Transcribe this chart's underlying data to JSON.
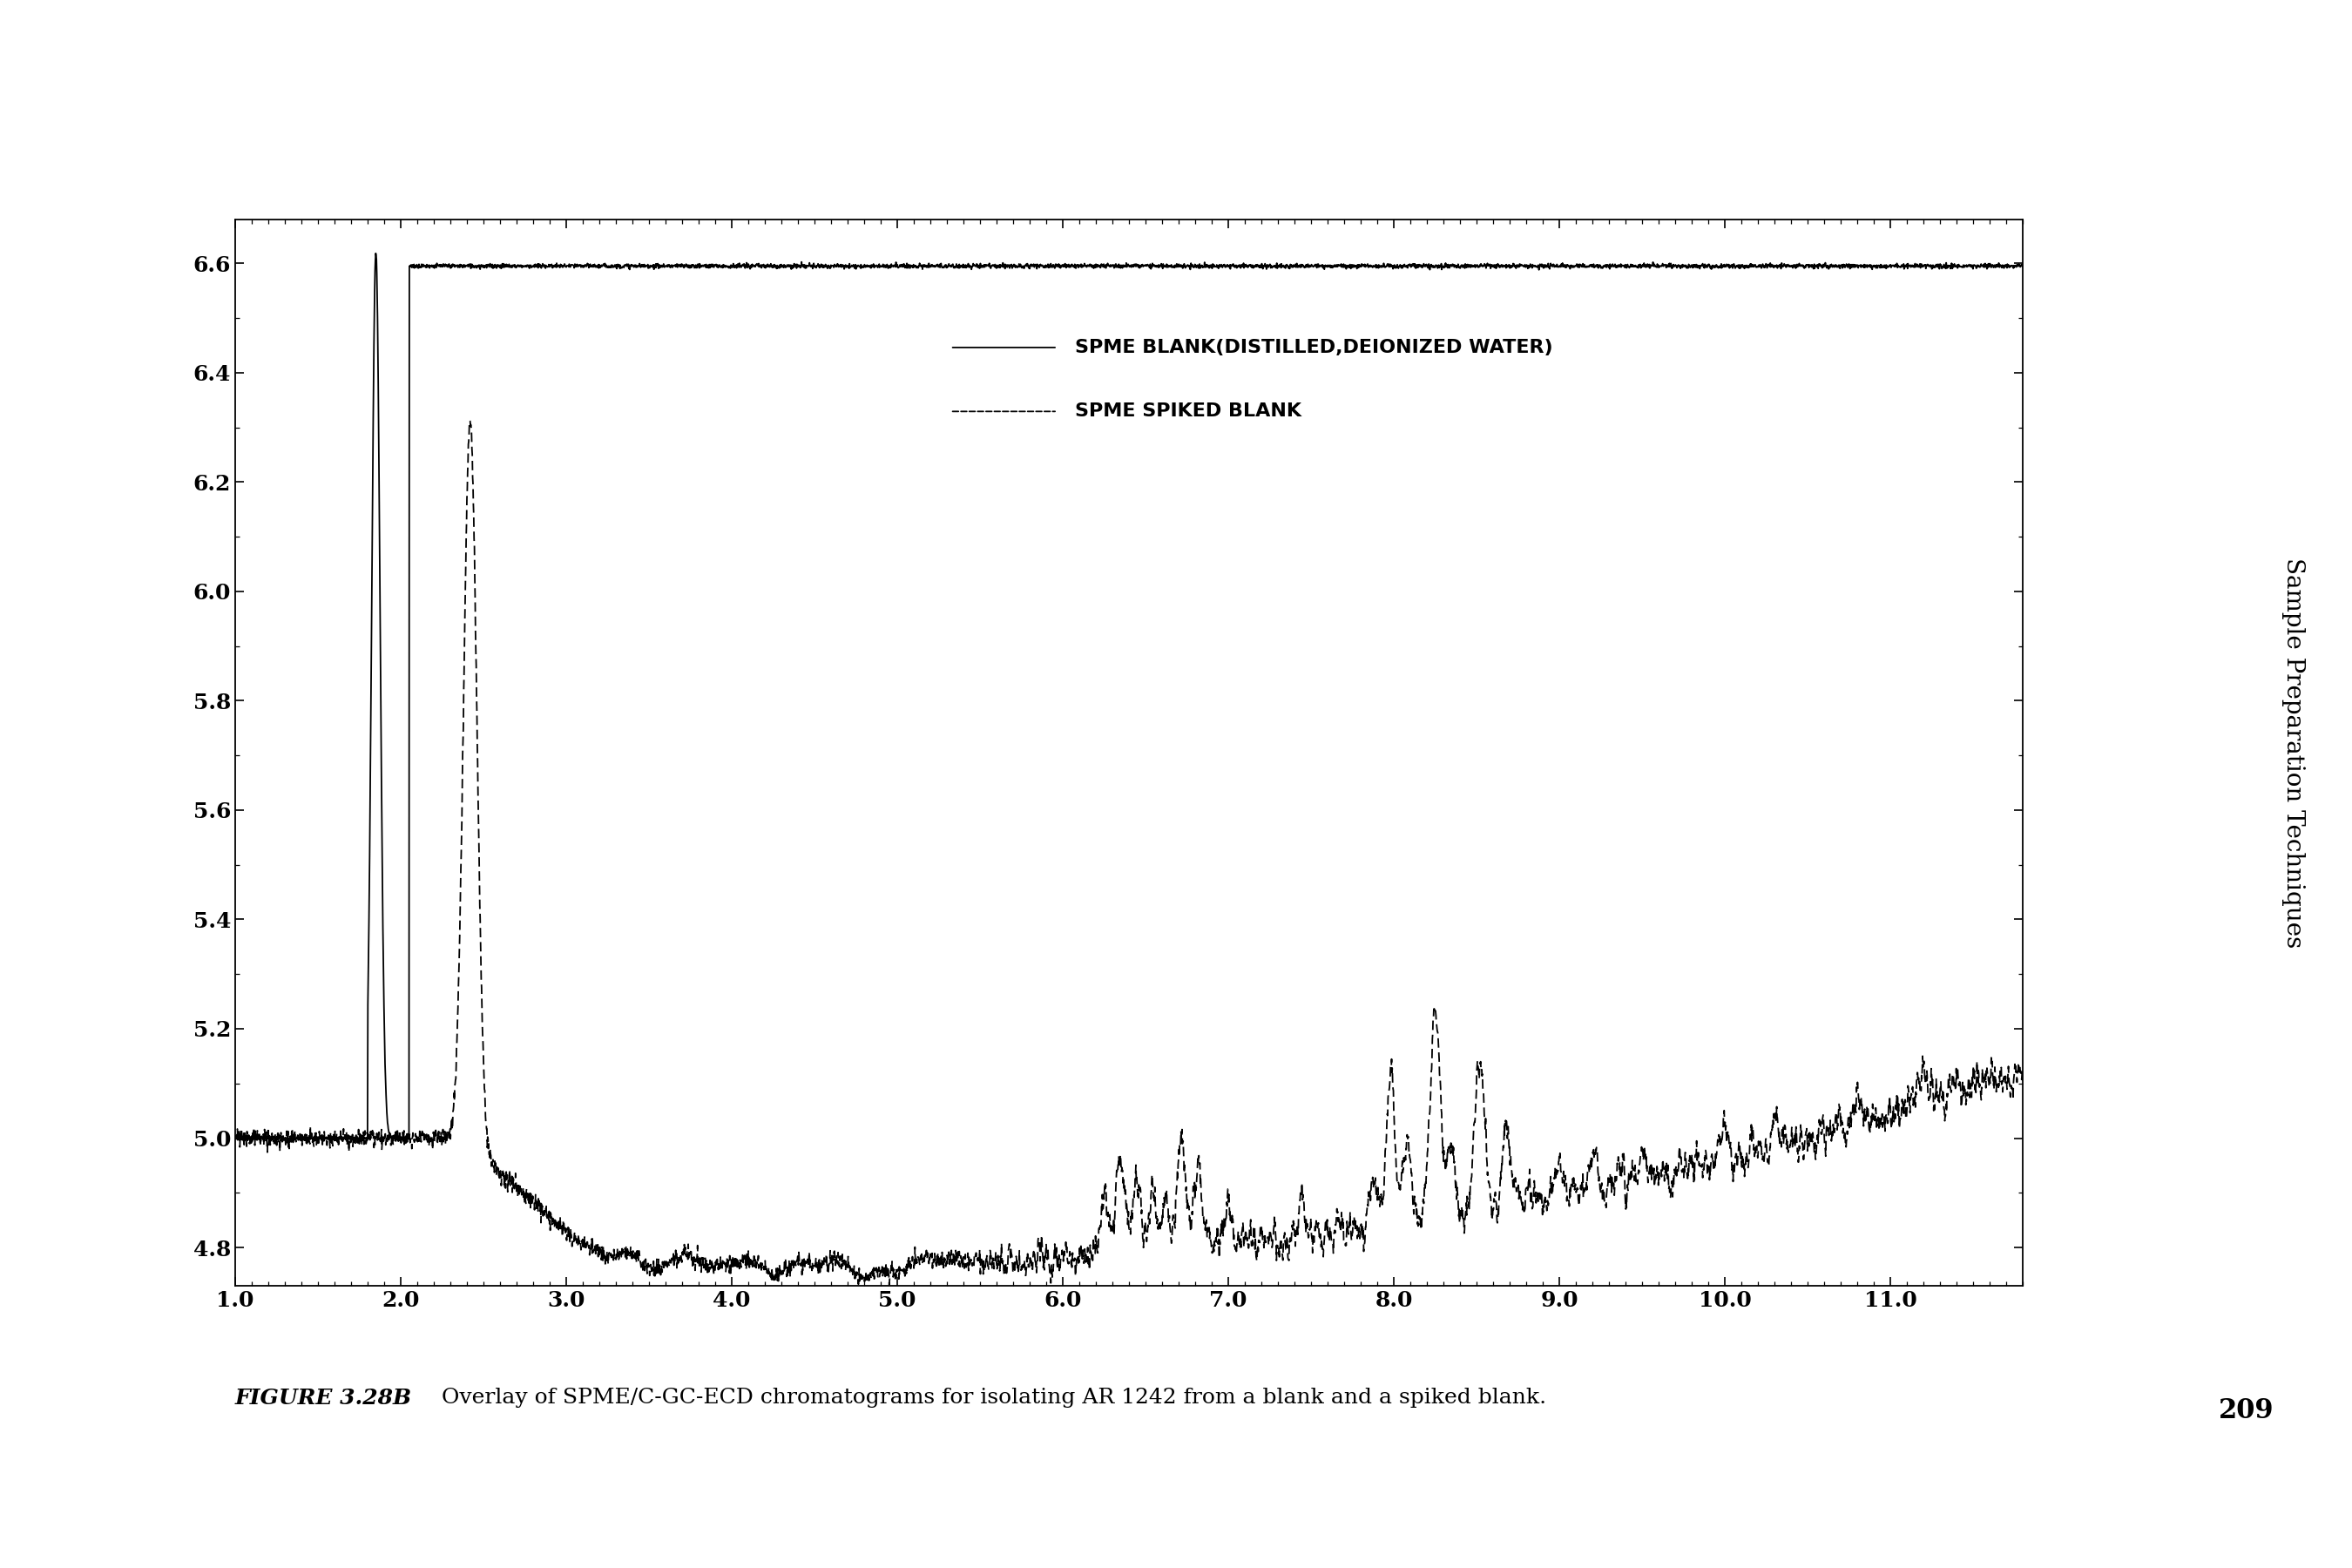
{
  "xlim": [
    1.0,
    11.8
  ],
  "ylim": [
    4.73,
    6.68
  ],
  "yticks": [
    4.8,
    5.0,
    5.2,
    5.4,
    5.6,
    5.8,
    6.0,
    6.2,
    6.4,
    6.6
  ],
  "xticks": [
    1.0,
    2.0,
    3.0,
    4.0,
    5.0,
    6.0,
    7.0,
    8.0,
    9.0,
    10.0,
    11.0
  ],
  "legend_labels": [
    "SPME BLANK(DISTILLED,DEIONIZED WATER)",
    "SPME SPIKED BLANK"
  ],
  "background_color": "#ffffff",
  "line_color": "#000000",
  "side_text": "Sample Preparation Techniques",
  "page_number": "209",
  "caption_bold": "FIGURE 3.28B",
  "caption_text": "  Overlay of SPME/C-GC-ECD chromatograms for isolating AR 1242 from a blank and a spiked blank."
}
